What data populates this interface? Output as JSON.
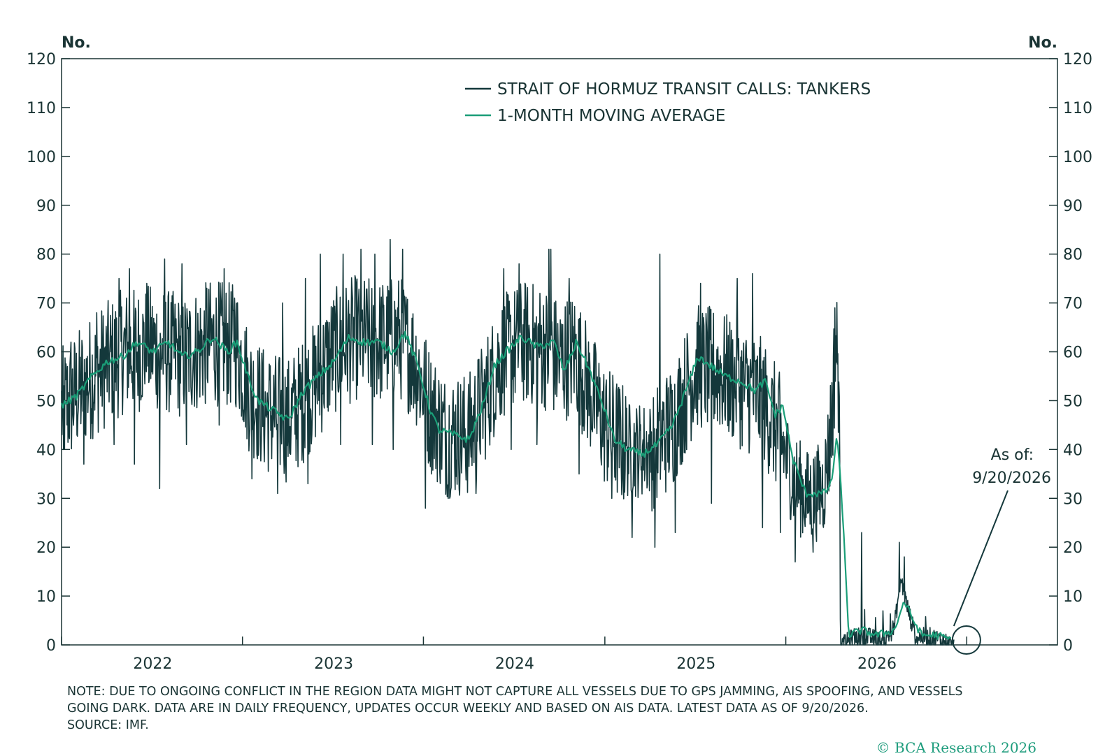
{
  "colors": {
    "series_raw": "#14383b",
    "series_avg": "#1a9e78",
    "axis": "#1a3434",
    "copyright": "#1d9c7c"
  },
  "chart_data": {
    "type": "line",
    "left_unit": "No.",
    "right_unit": "No.",
    "ylim": [
      0,
      120
    ],
    "y_ticks": [
      0,
      10,
      20,
      30,
      40,
      50,
      60,
      70,
      80,
      90,
      100,
      110,
      120
    ],
    "y_tick_labels": [
      "0",
      "10",
      "20",
      "30",
      "40",
      "50",
      "60",
      "70",
      "80",
      "90",
      "100",
      "110",
      "120"
    ],
    "xlim": [
      "2021-07-01",
      "2026-12-31"
    ],
    "x_ticks": [
      "2021-07-01",
      "2022-07-01",
      "2023-07-01",
      "2024-07-01",
      "2025-07-01",
      "2026-07-01"
    ],
    "x_labels": [
      {
        "label": "2022",
        "date": "2022-01-01"
      },
      {
        "label": "2023",
        "date": "2023-01-01"
      },
      {
        "label": "2024",
        "date": "2024-01-01"
      },
      {
        "label": "2025",
        "date": "2025-01-01"
      },
      {
        "label": "2026",
        "date": "2026-01-01"
      }
    ],
    "legend_placement": "top-center",
    "grid": false,
    "series": [
      {
        "name": "STRAIT OF HORMUZ TRANSIT CALLS: TANKERS",
        "style": "noisy daily series",
        "trend": [
          [
            "2021-07-01",
            48
          ],
          [
            "2021-09-01",
            55
          ],
          [
            "2021-11-01",
            60
          ],
          [
            "2022-01-01",
            61
          ],
          [
            "2022-03-01",
            59
          ],
          [
            "2022-05-01",
            62
          ],
          [
            "2022-06-20",
            61
          ],
          [
            "2022-07-15",
            52
          ],
          [
            "2022-08-15",
            48
          ],
          [
            "2022-10-01",
            46
          ],
          [
            "2022-11-15",
            52
          ],
          [
            "2023-01-01",
            60
          ],
          [
            "2023-02-15",
            63
          ],
          [
            "2023-04-01",
            62
          ],
          [
            "2023-05-15",
            63
          ],
          [
            "2023-06-15",
            58
          ],
          [
            "2023-07-15",
            48
          ],
          [
            "2023-08-15",
            43
          ],
          [
            "2023-10-01",
            43
          ],
          [
            "2023-11-01",
            50
          ],
          [
            "2023-12-01",
            58
          ],
          [
            "2024-01-15",
            62
          ],
          [
            "2024-03-01",
            61
          ],
          [
            "2024-04-01",
            58
          ],
          [
            "2024-05-01",
            60
          ],
          [
            "2024-06-01",
            52
          ],
          [
            "2024-07-01",
            45
          ],
          [
            "2024-08-15",
            40
          ],
          [
            "2024-10-01",
            40
          ],
          [
            "2024-11-15",
            45
          ],
          [
            "2025-01-01",
            57
          ],
          [
            "2025-02-15",
            56
          ],
          [
            "2025-04-01",
            53
          ],
          [
            "2025-05-15",
            50
          ],
          [
            "2025-06-15",
            44
          ],
          [
            "2025-07-15",
            34
          ],
          [
            "2025-08-15",
            30
          ],
          [
            "2025-09-15",
            32
          ],
          [
            "2025-10-01",
            45
          ],
          [
            "2025-10-10",
            62
          ],
          [
            "2025-10-16",
            55
          ],
          [
            "2025-10-20",
            0
          ],
          [
            "2025-11-15",
            2
          ],
          [
            "2025-12-15",
            2
          ],
          [
            "2026-01-15",
            1
          ],
          [
            "2026-02-05",
            4
          ],
          [
            "2026-02-18",
            14
          ],
          [
            "2026-03-01",
            9
          ],
          [
            "2026-03-20",
            2
          ],
          [
            "2026-04-20",
            2
          ],
          [
            "2026-05-20",
            1
          ],
          [
            "2026-06-05",
            0
          ]
        ],
        "spikes": [
          [
            "2021-07-20",
            62
          ],
          [
            "2021-09-10",
            68
          ],
          [
            "2021-10-25",
            75
          ],
          [
            "2021-11-15",
            77
          ],
          [
            "2021-12-20",
            74
          ],
          [
            "2022-01-25",
            79
          ],
          [
            "2022-03-01",
            78
          ],
          [
            "2022-04-20",
            73
          ],
          [
            "2022-05-25",
            77
          ],
          [
            "2022-06-15",
            71
          ],
          [
            "2022-09-20",
            70
          ],
          [
            "2022-11-05",
            75
          ],
          [
            "2022-12-05",
            80
          ],
          [
            "2023-01-20",
            80
          ],
          [
            "2023-02-25",
            81
          ],
          [
            "2023-03-25",
            80
          ],
          [
            "2023-04-25",
            83
          ],
          [
            "2023-05-20",
            81
          ],
          [
            "2023-12-10",
            77
          ],
          [
            "2024-01-10",
            78
          ],
          [
            "2024-03-10",
            81
          ],
          [
            "2024-03-14",
            81
          ],
          [
            "2024-04-20",
            75
          ],
          [
            "2024-10-20",
            80
          ],
          [
            "2025-01-10",
            74
          ],
          [
            "2025-03-25",
            75
          ],
          [
            "2025-04-25",
            76
          ],
          [
            "2025-10-08",
            69
          ],
          [
            "2025-12-01",
            23
          ],
          [
            "2026-02-15",
            21
          ],
          [
            "2026-02-25",
            18
          ]
        ],
        "dips": [
          [
            "2021-07-05",
            40
          ],
          [
            "2021-08-15",
            37
          ],
          [
            "2021-10-15",
            41
          ],
          [
            "2021-11-25",
            37
          ],
          [
            "2022-01-15",
            32
          ],
          [
            "2022-03-10",
            41
          ],
          [
            "2022-05-15",
            45
          ],
          [
            "2022-07-20",
            34
          ],
          [
            "2022-09-10",
            31
          ],
          [
            "2022-11-10",
            33
          ],
          [
            "2023-01-15",
            41
          ],
          [
            "2023-03-20",
            41
          ],
          [
            "2023-05-01",
            40
          ],
          [
            "2023-07-05",
            28
          ],
          [
            "2023-08-20",
            30
          ],
          [
            "2023-10-15",
            31
          ],
          [
            "2023-12-25",
            40
          ],
          [
            "2024-02-15",
            41
          ],
          [
            "2024-05-10",
            35
          ],
          [
            "2024-07-15",
            30
          ],
          [
            "2024-08-25",
            22
          ],
          [
            "2024-10-10",
            20
          ],
          [
            "2024-11-20",
            23
          ],
          [
            "2025-02-01",
            29
          ],
          [
            "2025-05-15",
            24
          ],
          [
            "2025-06-20",
            23
          ],
          [
            "2025-07-20",
            17
          ],
          [
            "2025-08-25",
            19
          ]
        ]
      },
      {
        "name": "1-MONTH MOVING AVERAGE",
        "style": "smooth line",
        "points": [
          [
            "2021-07-01",
            49
          ],
          [
            "2021-08-01",
            51
          ],
          [
            "2021-09-01",
            55
          ],
          [
            "2021-10-01",
            58
          ],
          [
            "2021-11-01",
            59
          ],
          [
            "2021-12-01",
            62
          ],
          [
            "2022-01-01",
            60
          ],
          [
            "2022-02-01",
            62
          ],
          [
            "2022-03-01",
            59
          ],
          [
            "2022-04-01",
            60
          ],
          [
            "2022-05-01",
            63
          ],
          [
            "2022-06-01",
            60
          ],
          [
            "2022-06-20",
            62
          ],
          [
            "2022-07-15",
            54
          ],
          [
            "2022-08-01",
            50
          ],
          [
            "2022-09-01",
            48
          ],
          [
            "2022-10-01",
            46
          ],
          [
            "2022-11-01",
            52
          ],
          [
            "2022-12-01",
            55
          ],
          [
            "2023-01-01",
            58
          ],
          [
            "2023-02-01",
            63
          ],
          [
            "2023-03-01",
            62
          ],
          [
            "2023-04-01",
            62
          ],
          [
            "2023-05-01",
            60
          ],
          [
            "2023-05-25",
            64
          ],
          [
            "2023-06-20",
            57
          ],
          [
            "2023-07-15",
            48
          ],
          [
            "2023-08-01",
            44
          ],
          [
            "2023-09-01",
            43
          ],
          [
            "2023-10-01",
            42
          ],
          [
            "2023-11-01",
            50
          ],
          [
            "2023-11-20",
            57
          ],
          [
            "2023-12-15",
            60
          ],
          [
            "2024-01-15",
            63
          ],
          [
            "2024-02-15",
            61
          ],
          [
            "2024-03-20",
            62
          ],
          [
            "2024-04-10",
            56
          ],
          [
            "2024-05-05",
            62
          ],
          [
            "2024-06-01",
            56
          ],
          [
            "2024-07-01",
            48
          ],
          [
            "2024-07-20",
            42
          ],
          [
            "2024-08-15",
            40
          ],
          [
            "2024-09-15",
            39
          ],
          [
            "2024-10-15",
            41
          ],
          [
            "2024-11-15",
            45
          ],
          [
            "2024-12-15",
            53
          ],
          [
            "2025-01-05",
            59
          ],
          [
            "2025-02-01",
            57
          ],
          [
            "2025-03-01",
            55
          ],
          [
            "2025-04-01",
            54
          ],
          [
            "2025-05-01",
            52
          ],
          [
            "2025-05-20",
            54
          ],
          [
            "2025-06-10",
            47
          ],
          [
            "2025-06-25",
            49
          ],
          [
            "2025-07-15",
            38
          ],
          [
            "2025-08-10",
            31
          ],
          [
            "2025-09-15",
            31
          ],
          [
            "2025-10-01",
            33
          ],
          [
            "2025-10-12",
            43
          ],
          [
            "2025-10-22",
            30
          ],
          [
            "2025-11-05",
            2
          ],
          [
            "2025-12-01",
            3
          ],
          [
            "2026-01-01",
            2
          ],
          [
            "2026-02-05",
            3
          ],
          [
            "2026-02-25",
            9
          ],
          [
            "2026-03-10",
            6
          ],
          [
            "2026-04-01",
            2
          ],
          [
            "2026-05-01",
            2
          ],
          [
            "2026-06-01",
            1
          ]
        ]
      }
    ],
    "annotations": [
      {
        "text_lines": [
          "As of:",
          "9/20/2026"
        ],
        "target_date": "2026-06-05",
        "target_value": 1
      }
    ]
  },
  "note": {
    "lines": [
      "NOTE: DUE TO ONGOING CONFLICT IN THE REGION DATA MIGHT NOT CAPTURE ALL VESSELS DUE TO GPS JAMMING, AIS SPOOFING, AND VESSELS",
      "GOING DARK. DATA ARE IN DAILY FREQUENCY, UPDATES OCCUR WEEKLY AND BASED ON AIS DATA. LATEST DATA AS OF 9/20/2026.",
      "SOURCE: IMF."
    ]
  },
  "copyright": "© BCA Research 2026"
}
